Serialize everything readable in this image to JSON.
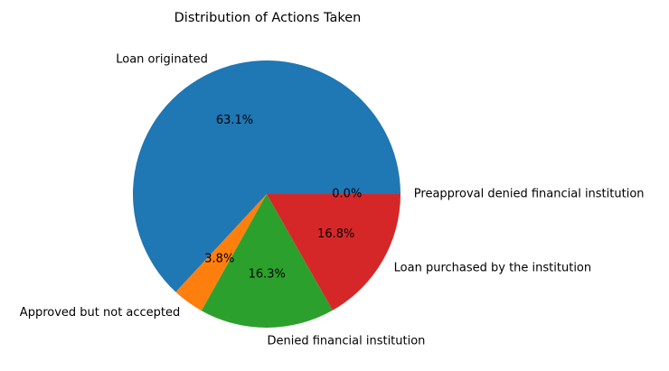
{
  "chart_data": {
    "type": "pie",
    "title": "Distribution of Actions Taken",
    "categories": [
      "Loan originated",
      "Approved but not accepted",
      "Denied financial institution",
      "Loan purchased by the institution",
      "Preapproval denied financial institution"
    ],
    "values": [
      63.1,
      3.8,
      16.3,
      16.8,
      0.0
    ],
    "percent_labels": [
      "63.1%",
      "3.8%",
      "16.3%",
      "16.8%",
      "0.0%"
    ],
    "colors": [
      "#1f77b4",
      "#ff7f0e",
      "#2ca02c",
      "#d62728",
      "#9467bd"
    ],
    "start_angle_deg": 0,
    "direction": "counterclockwise"
  }
}
